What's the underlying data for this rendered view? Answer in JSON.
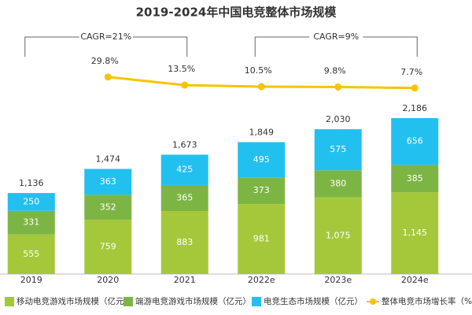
{
  "chart_data": {
    "type": "stacked-bar-line",
    "title": "2019-2024年中国电竞整体市场规模",
    "categories": [
      "2019",
      "2020",
      "2021",
      "2022e",
      "2023e",
      "2024e"
    ],
    "series": [
      {
        "name": "移动电竞游戏市场规模（亿元）",
        "color": "#a5c83a",
        "values": [
          555,
          759,
          883,
          981,
          1075,
          1145
        ],
        "value_labels": [
          "555",
          "759",
          "883",
          "981",
          "1,075",
          "1,145"
        ]
      },
      {
        "name": "端游电竞游戏市场规模（亿元）",
        "color": "#7db544",
        "values": [
          331,
          352,
          365,
          373,
          380,
          385
        ]
      },
      {
        "name": "电竞生态市场规模（亿元）",
        "color": "#22c0ef",
        "values": [
          250,
          363,
          425,
          495,
          575,
          656
        ]
      },
      {
        "name": "整体电竞市场增长率（%）",
        "color": "#f6c400",
        "type": "line",
        "axis": "y2",
        "values": [
          null,
          29.8,
          13.5,
          10.5,
          9.8,
          7.7
        ],
        "value_labels": [
          null,
          "29.8%",
          "13.5%",
          "10.5%",
          "9.8%",
          "7.7%"
        ]
      }
    ],
    "totals": {
      "values": [
        1136,
        1474,
        1673,
        1849,
        2030,
        2186
      ],
      "value_labels": [
        "1,136",
        "1,474",
        "1,673",
        "1,849",
        "2,030",
        "2,186"
      ]
    },
    "annotations": [
      "CAGR=21%",
      "CAGR=9%"
    ],
    "ylim": [
      0,
      3400
    ],
    "y2lim": [
      -365,
      121
    ]
  }
}
